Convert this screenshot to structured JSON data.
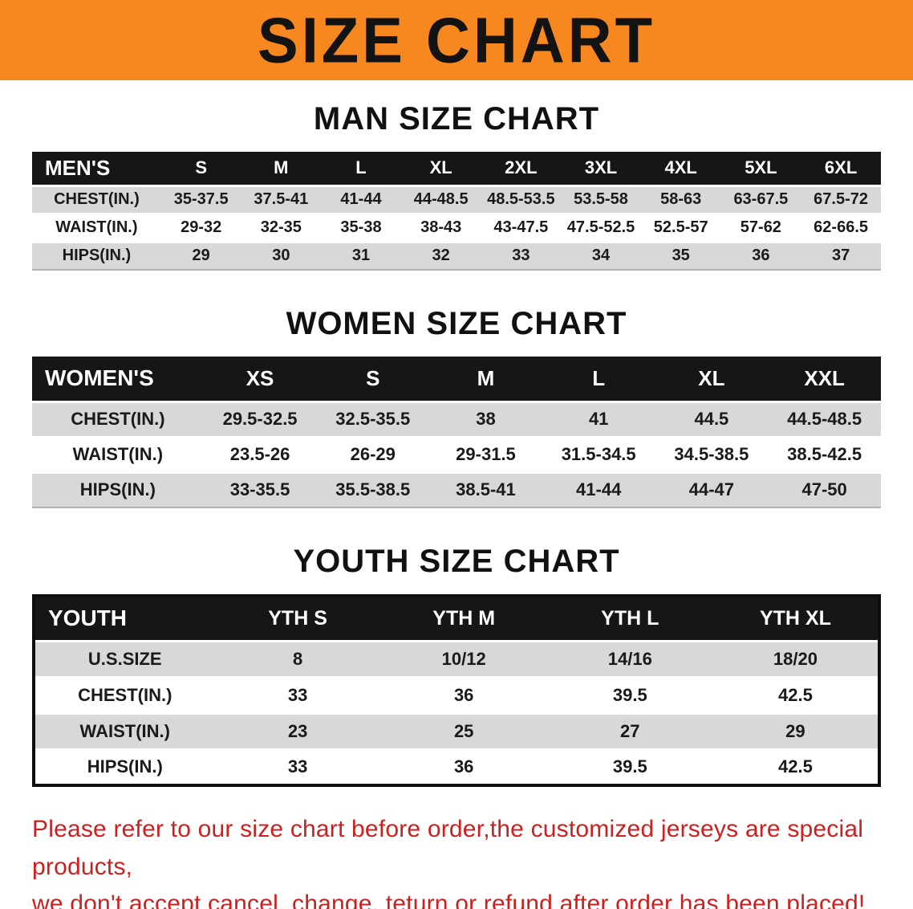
{
  "banner": {
    "title": "SIZE CHART"
  },
  "colors": {
    "banner_orange": "#F6881F",
    "table_header_black": "#161616",
    "row_gray": "#d8d8d8",
    "warning_red": "#cc2020"
  },
  "sections": [
    {
      "id": "men",
      "title": "MAN SIZE CHART",
      "table": {
        "header": [
          "MEN'S",
          "S",
          "M",
          "L",
          "XL",
          "2XL",
          "3XL",
          "4XL",
          "5XL",
          "6XL"
        ],
        "rows": [
          {
            "label": "CHEST(IN.)",
            "values": [
              "35-37.5",
              "37.5-41",
              "41-44",
              "44-48.5",
              "48.5-53.5",
              "53.5-58",
              "58-63",
              "63-67.5",
              "67.5-72"
            ]
          },
          {
            "label": "WAIST(IN.)",
            "values": [
              "29-32",
              "32-35",
              "35-38",
              "38-43",
              "43-47.5",
              "47.5-52.5",
              "52.5-57",
              "57-62",
              "62-66.5"
            ]
          },
          {
            "label": "HIPS(IN.)",
            "values": [
              "29",
              "30",
              "31",
              "32",
              "33",
              "34",
              "35",
              "36",
              "37"
            ]
          }
        ]
      }
    },
    {
      "id": "women",
      "title": "WOMEN SIZE CHART",
      "table": {
        "header": [
          "WOMEN'S",
          "XS",
          "S",
          "M",
          "L",
          "XL",
          "XXL"
        ],
        "rows": [
          {
            "label": "CHEST(IN.)",
            "values": [
              "29.5-32.5",
              "32.5-35.5",
              "38",
              "41",
              "44.5",
              "44.5-48.5"
            ]
          },
          {
            "label": "WAIST(IN.)",
            "values": [
              "23.5-26",
              "26-29",
              "29-31.5",
              "31.5-34.5",
              "34.5-38.5",
              "38.5-42.5"
            ]
          },
          {
            "label": "HIPS(IN.)",
            "values": [
              "33-35.5",
              "35.5-38.5",
              "38.5-41",
              "41-44",
              "44-47",
              "47-50"
            ]
          }
        ]
      }
    },
    {
      "id": "youth",
      "title": "YOUTH SIZE CHART",
      "table": {
        "header": [
          "YOUTH",
          "YTH S",
          "YTH M",
          "YTH L",
          "YTH XL"
        ],
        "rows": [
          {
            "label": "U.S.SIZE",
            "values": [
              "8",
              "10/12",
              "14/16",
              "18/20"
            ]
          },
          {
            "label": "CHEST(IN.)",
            "values": [
              "33",
              "36",
              "39.5",
              "42.5"
            ]
          },
          {
            "label": "WAIST(IN.)",
            "values": [
              "23",
              "25",
              "27",
              "29"
            ]
          },
          {
            "label": "HIPS(IN.)",
            "values": [
              "33",
              "36",
              "39.5",
              "42.5"
            ]
          }
        ]
      }
    }
  ],
  "footer": {
    "lines": [
      "Please refer to our size chart before order,the customized jerseys are special products,",
      "we don't accept cancel, change, teturn or refund after order has been placed!"
    ]
  }
}
